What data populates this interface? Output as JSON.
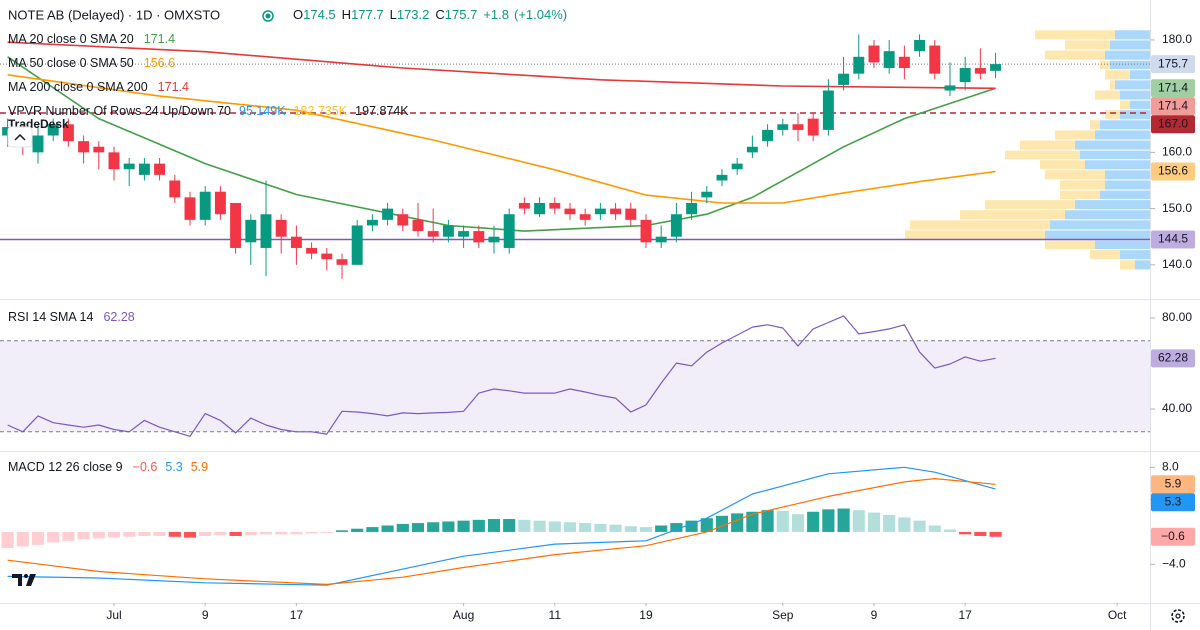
{
  "chart_data": [
    {
      "type": "candlestick",
      "title": "NOTE AB (Delayed) · 1D · OMXSTO",
      "ohlc_labels": [
        "O",
        "H",
        "L",
        "C"
      ],
      "change": {
        "value": 1.8,
        "label": "+1.8"
      },
      "change_pct": {
        "value": 1.04,
        "label": "(+1.04%)"
      },
      "watermark": "TradeDesk",
      "open": [
        163,
        164,
        160,
        163,
        165,
        162,
        161,
        160,
        157,
        156,
        158,
        155,
        152,
        148,
        153,
        151,
        144,
        143,
        148,
        145,
        143,
        142,
        141,
        140,
        147,
        148,
        149,
        148,
        146,
        145,
        145,
        146,
        144,
        143,
        151,
        149,
        151,
        150,
        149,
        149,
        150,
        150,
        148,
        144,
        145,
        149,
        152,
        155,
        157,
        160,
        162,
        164,
        165,
        166,
        164,
        172,
        174,
        179,
        175,
        177,
        178,
        179,
        171,
        172.5,
        175,
        174.5
      ],
      "high": [
        166,
        165,
        165,
        166,
        166,
        163,
        162,
        161,
        159,
        159,
        159,
        156,
        153,
        154,
        154,
        151,
        149,
        155,
        149,
        147,
        144,
        143,
        142,
        148,
        149,
        151,
        150,
        151,
        150,
        148,
        147,
        147,
        147,
        150,
        152,
        152,
        152,
        151,
        150,
        151,
        151,
        151,
        149,
        147,
        151,
        153,
        154,
        157,
        159,
        163,
        165,
        166,
        167,
        167,
        173,
        177,
        181,
        180,
        180,
        179,
        181,
        180,
        176,
        177,
        178.5,
        177.7
      ],
      "low": [
        161,
        159.5,
        158,
        162,
        161,
        158,
        157,
        155,
        154,
        155,
        155,
        151,
        147,
        147,
        148,
        142,
        140,
        138,
        142,
        140,
        141,
        139,
        137.5,
        140,
        146,
        147,
        146,
        145,
        144,
        144,
        143,
        143,
        142,
        142,
        149,
        148.5,
        149,
        148,
        147,
        148,
        148,
        147,
        143,
        143,
        144,
        148,
        151,
        154,
        156,
        159,
        161,
        163,
        162,
        162,
        163,
        171,
        173,
        175,
        174,
        173,
        177,
        173,
        170,
        171,
        173,
        173.2
      ],
      "close": [
        164.5,
        161,
        163,
        165,
        162,
        160,
        160,
        157,
        158,
        158,
        156,
        152,
        148,
        153,
        149,
        143,
        148,
        149,
        145,
        143,
        142,
        141,
        140,
        147,
        148,
        150,
        147,
        146,
        145,
        147,
        146,
        144,
        145,
        149,
        150,
        151,
        150,
        149,
        148,
        150,
        149,
        148,
        144,
        145,
        149,
        151,
        153,
        156,
        158,
        161,
        164,
        165,
        164,
        163,
        171,
        174,
        177,
        176,
        178,
        175,
        180,
        174,
        171.9,
        175,
        174,
        175.7
      ],
      "up_color": "#089981",
      "down_color": "#f23645",
      "last_price_color": "#9fb8dc",
      "xlim": [
        -0.5,
        75.16
      ],
      "xticks": [
        {
          "value": 7,
          "label": "Jul"
        },
        {
          "value": 13,
          "label": "9"
        },
        {
          "value": 19,
          "label": "17"
        },
        {
          "value": 30,
          "label": "Aug"
        },
        {
          "value": 36,
          "label": "11"
        },
        {
          "value": 42,
          "label": "19"
        },
        {
          "value": 51,
          "label": "Sep"
        },
        {
          "value": 57,
          "label": "9"
        },
        {
          "value": 63,
          "label": "17"
        },
        {
          "value": 73,
          "label": "Oct"
        }
      ],
      "ylim": [
        134.1,
        187.1
      ],
      "yticks": [
        {
          "value": 180,
          "label": "180.0"
        },
        {
          "value": 160,
          "label": "160.0"
        },
        {
          "value": 150,
          "label": "150.0"
        },
        {
          "value": 140,
          "label": "140.0"
        }
      ],
      "series": [
        {
          "name": "MA 20 close 0 SMA 20",
          "color": "#43a047",
          "x": [
            0,
            6,
            13,
            19,
            29,
            34,
            42,
            46,
            49,
            55,
            59,
            65
          ],
          "values": [
            177,
            166,
            158,
            152.5,
            147,
            146,
            147,
            149,
            152,
            161,
            166,
            171.4
          ]
        },
        {
          "name": "MA 50 close 0 SMA 50",
          "color": "#ff9800",
          "x": [
            0,
            10,
            19,
            28,
            36,
            42,
            47,
            51,
            55,
            60,
            65
          ],
          "values": [
            173.8,
            170,
            167.5,
            162.2,
            156.9,
            152.4,
            151,
            151,
            152.8,
            154.8,
            156.6
          ]
        },
        {
          "name": "MA 200 close 0 SMA 200",
          "color": "#e53935",
          "x": [
            0,
            13,
            26,
            39,
            51,
            65
          ],
          "values": [
            179.6,
            177.9,
            175,
            172.9,
            171.8,
            171.4
          ]
        }
      ],
      "levels": [
        {
          "value": 167,
          "label": "167.0",
          "color": "#b22833",
          "dashed": true
        },
        {
          "value": 144.5,
          "label": "144.5",
          "color": "#7e57c2",
          "dashed": false
        }
      ],
      "volume_profile": {
        "name": "VPVR Number Of Rows 24 Up/Down 70",
        "totals": [
          {
            "value": 95149,
            "label": "95.149K"
          },
          {
            "value": 182735,
            "label": "182.735K"
          },
          {
            "value": 197874,
            "label": "197.874K"
          }
        ],
        "up_color": "#2196f3",
        "down_color": "#fbc02d",
        "xlim": [
          0,
          250
        ],
        "bins": [
          181.8,
          180.0,
          178.2,
          176.4,
          174.7,
          172.9,
          171.1,
          169.3,
          167.6,
          165.8,
          164.0,
          162.2,
          160.4,
          158.7,
          156.9,
          155.1,
          153.3,
          151.6,
          149.8,
          148.0,
          146.2,
          144.4,
          142.7,
          140.9,
          139.1
        ],
        "up": [
          35,
          40,
          45,
          40,
          20,
          35,
          30,
          20,
          30,
          50,
          55,
          75,
          70,
          65,
          45,
          45,
          50,
          75,
          85,
          100,
          105,
          55,
          30,
          15
        ],
        "down": [
          80,
          45,
          60,
          10,
          25,
          5,
          25,
          10,
          15,
          10,
          40,
          55,
          75,
          45,
          60,
          45,
          40,
          90,
          105,
          140,
          140,
          50,
          30,
          15
        ]
      }
    },
    {
      "type": "line",
      "name": "RSI 14 SMA 14",
      "color": "#7e57c2",
      "values": [
        33,
        30,
        37,
        34,
        33,
        32,
        33,
        31,
        30,
        35,
        32,
        30,
        28,
        38,
        35,
        29.5,
        36,
        33,
        31,
        30,
        30,
        29,
        39,
        38.7,
        38,
        37,
        38.3,
        38,
        38.3,
        38.5,
        39,
        47,
        48.8,
        48,
        47,
        47,
        47,
        48.8,
        47.5,
        46,
        44.8,
        38.7,
        41.8,
        51.4,
        60.2,
        59,
        65,
        69,
        72.5,
        76,
        77,
        75.6,
        67.7,
        75.2,
        78,
        80.9,
        73,
        74,
        75.2,
        77,
        65,
        58,
        59.8,
        62.9,
        61,
        62.28
      ],
      "band": [
        30,
        70
      ],
      "ylim": [
        22,
        87.9
      ],
      "yticks": [
        {
          "value": 80,
          "label": "80.00"
        },
        {
          "value": 40,
          "label": "40.00"
        }
      ]
    },
    {
      "type": "macd",
      "name": "MACD 12 26 close 9",
      "histogram": {
        "values": [
          -2.0,
          -1.8,
          -1.6,
          -1.3,
          -1.1,
          -0.9,
          -0.8,
          -0.7,
          -0.6,
          -0.5,
          -0.5,
          -0.6,
          -0.7,
          -0.5,
          -0.4,
          -0.5,
          -0.4,
          -0.3,
          -0.3,
          -0.3,
          -0.2,
          -0.1,
          0.2,
          0.4,
          0.6,
          0.8,
          1.0,
          1.1,
          1.2,
          1.3,
          1.4,
          1.5,
          1.6,
          1.6,
          1.5,
          1.4,
          1.3,
          1.2,
          1.1,
          1.0,
          0.9,
          0.7,
          0.6,
          0.8,
          1.1,
          1.4,
          1.7,
          2.0,
          2.3,
          2.5,
          2.7,
          2.6,
          2.2,
          2.5,
          2.8,
          2.9,
          2.7,
          2.4,
          2.1,
          1.8,
          1.4,
          0.8,
          0.3,
          -0.3,
          -0.5,
          -0.6
        ],
        "last_label": "−0.6",
        "colors": {
          "up_rising": "#26a69a",
          "up_falling": "#b2dfdb",
          "down_falling": "#ff5252",
          "down_rising": "#ffcdd2"
        }
      },
      "series": [
        {
          "color": "#2196f3",
          "x": [
            0,
            6,
            13,
            21,
            26,
            30,
            36,
            42,
            46,
            49,
            54,
            59,
            61,
            65
          ],
          "values": [
            -5.5,
            -5.7,
            -6.3,
            -6.6,
            -4.6,
            -3.0,
            -1.5,
            -1.1,
            1.7,
            4.7,
            7.2,
            8.0,
            7.4,
            5.3
          ]
        },
        {
          "color": "#ff6d00",
          "x": [
            0,
            6,
            13,
            21,
            26,
            30,
            36,
            42,
            46,
            49,
            54,
            59,
            61,
            65
          ],
          "values": [
            -3.5,
            -4.9,
            -5.8,
            -6.5,
            -5.6,
            -4.4,
            -2.8,
            -1.7,
            0,
            2.2,
            4.4,
            6.2,
            6.6,
            5.9
          ]
        }
      ],
      "ylim": [
        -8.8,
        9.9
      ],
      "yticks": [
        {
          "value": 8,
          "label": "8.0"
        },
        {
          "value": 4,
          "label": "4.0"
        },
        {
          "value": -4,
          "label": "−4.0"
        }
      ]
    }
  ]
}
